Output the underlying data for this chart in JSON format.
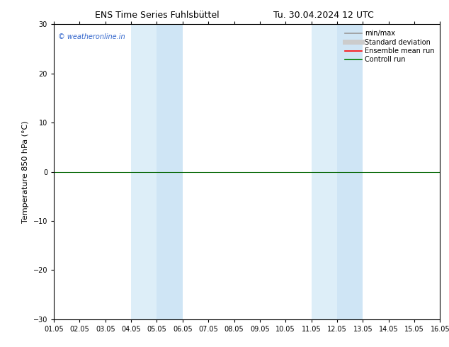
{
  "title_left": "ENS Time Series Fuhlsbüttel",
  "title_right": "Tu. 30.04.2024 12 UTC",
  "ylabel": "Temperature 850 hPa (°C)",
  "watermark": "© weatheronline.in",
  "ylim": [
    -30,
    30
  ],
  "yticks": [
    -30,
    -20,
    -10,
    0,
    10,
    20,
    30
  ],
  "x_start": 1.05,
  "x_end": 16.05,
  "xtick_labels": [
    "01.05",
    "02.05",
    "03.05",
    "04.05",
    "05.05",
    "06.05",
    "07.05",
    "08.05",
    "09.05",
    "10.05",
    "11.05",
    "12.05",
    "13.05",
    "14.05",
    "15.05",
    "16.05"
  ],
  "xtick_positions": [
    1.05,
    2.05,
    3.05,
    4.05,
    5.05,
    6.05,
    7.05,
    8.05,
    9.05,
    10.05,
    11.05,
    12.05,
    13.05,
    14.05,
    15.05,
    16.05
  ],
  "shaded_regions": [
    [
      4.05,
      5.05
    ],
    [
      5.05,
      6.05
    ],
    [
      11.05,
      12.05
    ],
    [
      12.05,
      13.05
    ]
  ],
  "shaded_colors": [
    "#ddeef8",
    "#cfe5f5",
    "#ddeef8",
    "#cfe5f5"
  ],
  "zero_line_color": "#006400",
  "zero_line_y": 0,
  "legend_items": [
    {
      "label": "min/max",
      "color": "#999999",
      "lw": 1.2,
      "style": "-"
    },
    {
      "label": "Standard deviation",
      "color": "#cccccc",
      "lw": 5,
      "style": "-"
    },
    {
      "label": "Ensemble mean run",
      "color": "#ff0000",
      "lw": 1.2,
      "style": "-"
    },
    {
      "label": "Controll run",
      "color": "#008000",
      "lw": 1.2,
      "style": "-"
    }
  ],
  "bg_color": "#ffffff",
  "watermark_color": "#3366cc",
  "title_fontsize": 9,
  "ylabel_fontsize": 8,
  "tick_fontsize": 7,
  "legend_fontsize": 7,
  "fig_width": 6.34,
  "fig_height": 4.9,
  "dpi": 100
}
